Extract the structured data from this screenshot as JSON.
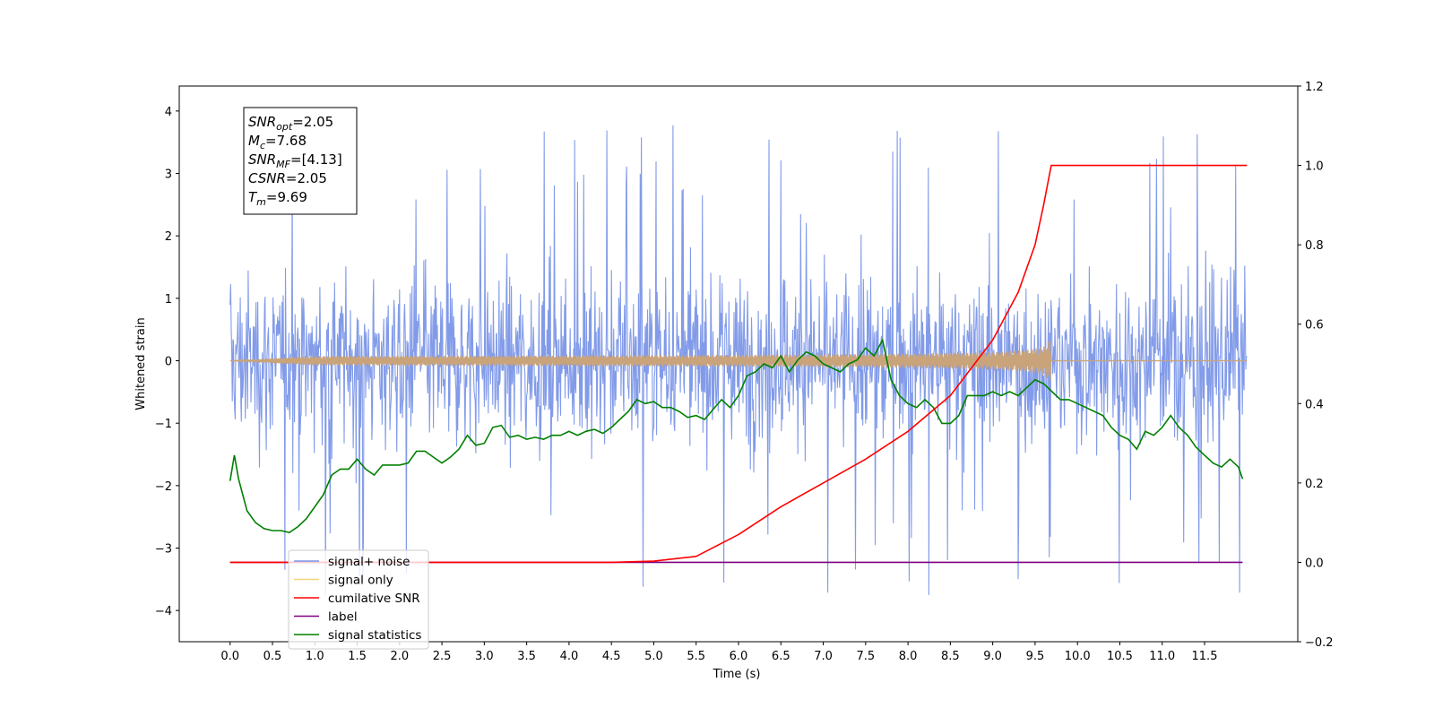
{
  "chart_data": {
    "type": "line",
    "xlabel": "Time (s)",
    "ylabel": "Whitened strain",
    "xlim": [
      -0.6,
      12.6
    ],
    "ylim": [
      -4.5,
      4.4
    ],
    "ylim_right": [
      -0.2,
      1.2
    ],
    "x_ticks": [
      "0.0",
      "0.5",
      "1.0",
      "1.5",
      "2.0",
      "2.5",
      "3.0",
      "3.5",
      "4.0",
      "4.5",
      "5.0",
      "5.5",
      "6.0",
      "6.5",
      "7.0",
      "7.5",
      "8.0",
      "8.5",
      "9.0",
      "9.5",
      "10.0",
      "10.5",
      "11.0",
      "11.5"
    ],
    "y_ticks": [
      "4",
      "3",
      "2",
      "1",
      "0",
      "−1",
      "−2",
      "−3",
      "−4"
    ],
    "y_ticks_right": [
      "1.2",
      "1.0",
      "0.8",
      "0.6",
      "0.4",
      "0.2",
      "0.0",
      "−0.2"
    ],
    "grid": false,
    "legend_position": "lower-left",
    "annotation": {
      "lines": [
        {
          "base": "SNR",
          "sub": "opt",
          "rest": "=2.05"
        },
        {
          "base": "M",
          "sub": "c",
          "rest": "=7.68"
        },
        {
          "base": "SNR",
          "sub": "MF",
          "rest": "=[4.13]"
        },
        {
          "base": "CSNR",
          "sub": "",
          "rest": "=2.05"
        },
        {
          "base": "T",
          "sub": "m",
          "rest": "=9.69"
        }
      ]
    },
    "series": [
      {
        "name": "signal+ noise",
        "color": "#7b96e8",
        "axis": "left",
        "x_range": [
          0.0,
          12.0
        ],
        "envelope": [
          -2.6,
          2.6
        ],
        "peak_max": 4.05,
        "peak_min": -4.1
      },
      {
        "name": "signal only",
        "color": "#f5c242",
        "axis": "left",
        "x_range": [
          0.0,
          12.0
        ],
        "chirp_end": 9.69,
        "chirp_amplitude_max": 0.35
      },
      {
        "name": "cumilative SNR",
        "color": "#ff0000",
        "axis": "right",
        "x": [
          0.0,
          4.0,
          4.5,
          5.0,
          5.5,
          6.0,
          6.5,
          7.0,
          7.5,
          8.0,
          8.5,
          9.0,
          9.3,
          9.5,
          9.6,
          9.69,
          10.0,
          10.5,
          11.0,
          11.5,
          12.0
        ],
        "y": [
          0.0,
          0.0,
          0.0,
          0.003,
          0.015,
          0.07,
          0.14,
          0.2,
          0.26,
          0.33,
          0.42,
          0.56,
          0.68,
          0.8,
          0.9,
          1.0,
          1.0,
          1.0,
          1.0,
          1.0,
          1.0
        ]
      },
      {
        "name": "label",
        "color": "#800080",
        "axis": "right",
        "x": [
          0.0,
          11.95
        ],
        "y": [
          0.0,
          0.0
        ]
      },
      {
        "name": "signal statistics",
        "color": "#008000",
        "axis": "right",
        "x": [
          0.0,
          0.05,
          0.1,
          0.2,
          0.3,
          0.4,
          0.5,
          0.6,
          0.7,
          0.8,
          0.9,
          1.0,
          1.1,
          1.2,
          1.3,
          1.4,
          1.5,
          1.6,
          1.7,
          1.8,
          1.9,
          2.0,
          2.1,
          2.2,
          2.3,
          2.4,
          2.5,
          2.6,
          2.7,
          2.8,
          2.9,
          3.0,
          3.1,
          3.2,
          3.3,
          3.4,
          3.5,
          3.6,
          3.7,
          3.8,
          3.9,
          4.0,
          4.1,
          4.2,
          4.3,
          4.4,
          4.5,
          4.6,
          4.7,
          4.8,
          4.9,
          5.0,
          5.1,
          5.2,
          5.3,
          5.4,
          5.5,
          5.6,
          5.7,
          5.8,
          5.9,
          6.0,
          6.1,
          6.2,
          6.3,
          6.4,
          6.5,
          6.6,
          6.7,
          6.8,
          6.9,
          7.0,
          7.1,
          7.2,
          7.3,
          7.4,
          7.5,
          7.6,
          7.7,
          7.8,
          7.9,
          8.0,
          8.1,
          8.2,
          8.3,
          8.4,
          8.5,
          8.6,
          8.7,
          8.8,
          8.9,
          9.0,
          9.1,
          9.2,
          9.3,
          9.4,
          9.5,
          9.6,
          9.7,
          9.8,
          9.9,
          10.0,
          10.1,
          10.2,
          10.3,
          10.4,
          10.5,
          10.6,
          10.7,
          10.8,
          10.9,
          11.0,
          11.1,
          11.2,
          11.3,
          11.4,
          11.5,
          11.6,
          11.7,
          11.8,
          11.9,
          11.95
        ],
        "y": [
          0.205,
          0.27,
          0.21,
          0.13,
          0.1,
          0.085,
          0.08,
          0.08,
          0.075,
          0.09,
          0.11,
          0.14,
          0.17,
          0.22,
          0.235,
          0.235,
          0.26,
          0.235,
          0.22,
          0.245,
          0.245,
          0.245,
          0.25,
          0.28,
          0.28,
          0.265,
          0.25,
          0.265,
          0.285,
          0.32,
          0.295,
          0.3,
          0.34,
          0.345,
          0.315,
          0.32,
          0.31,
          0.315,
          0.31,
          0.32,
          0.32,
          0.33,
          0.32,
          0.33,
          0.335,
          0.325,
          0.34,
          0.36,
          0.38,
          0.41,
          0.4,
          0.405,
          0.39,
          0.39,
          0.38,
          0.365,
          0.37,
          0.36,
          0.385,
          0.41,
          0.39,
          0.42,
          0.47,
          0.48,
          0.5,
          0.49,
          0.52,
          0.48,
          0.51,
          0.53,
          0.52,
          0.5,
          0.49,
          0.48,
          0.5,
          0.51,
          0.54,
          0.52,
          0.56,
          0.46,
          0.42,
          0.4,
          0.39,
          0.41,
          0.39,
          0.35,
          0.35,
          0.37,
          0.42,
          0.42,
          0.42,
          0.43,
          0.42,
          0.43,
          0.42,
          0.44,
          0.46,
          0.45,
          0.43,
          0.41,
          0.41,
          0.4,
          0.39,
          0.38,
          0.37,
          0.34,
          0.32,
          0.31,
          0.285,
          0.33,
          0.32,
          0.34,
          0.37,
          0.34,
          0.32,
          0.29,
          0.27,
          0.25,
          0.24,
          0.26,
          0.24,
          0.21
        ]
      }
    ]
  }
}
